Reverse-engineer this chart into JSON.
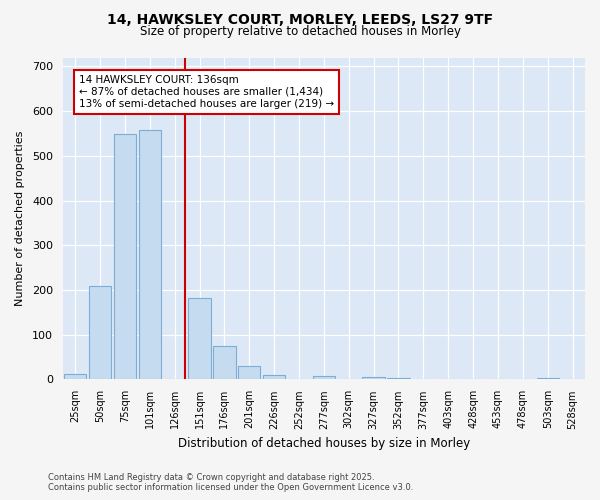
{
  "title_line1": "14, HAWKSLEY COURT, MORLEY, LEEDS, LS27 9TF",
  "title_line2": "Size of property relative to detached houses in Morley",
  "xlabel": "Distribution of detached houses by size in Morley",
  "ylabel": "Number of detached properties",
  "bar_labels": [
    "25sqm",
    "50sqm",
    "75sqm",
    "101sqm",
    "126sqm",
    "151sqm",
    "176sqm",
    "201sqm",
    "226sqm",
    "252sqm",
    "277sqm",
    "302sqm",
    "327sqm",
    "352sqm",
    "377sqm",
    "403sqm",
    "428sqm",
    "453sqm",
    "478sqm",
    "503sqm",
    "528sqm"
  ],
  "bar_values": [
    12,
    210,
    550,
    558,
    0,
    182,
    75,
    30,
    10,
    0,
    8,
    0,
    5,
    3,
    0,
    0,
    0,
    0,
    0,
    3,
    0
  ],
  "bar_color": "#c5dcf0",
  "bar_edgecolor": "#7dadd4",
  "plot_bg_color": "#dce8f5",
  "fig_bg_color": "#f5f5f5",
  "annotation_text_line1": "14 HAWKSLEY COURT: 136sqm",
  "annotation_text_line2": "← 87% of detached houses are smaller (1,434)",
  "annotation_text_line3": "13% of semi-detached houses are larger (219) →",
  "vline_color": "#cc0000",
  "vline_x": 4.4,
  "ylim": [
    0,
    720
  ],
  "yticks": [
    0,
    100,
    200,
    300,
    400,
    500,
    600,
    700
  ],
  "footnote": "Contains HM Land Registry data © Crown copyright and database right 2025.\nContains public sector information licensed under the Open Government Licence v3.0."
}
